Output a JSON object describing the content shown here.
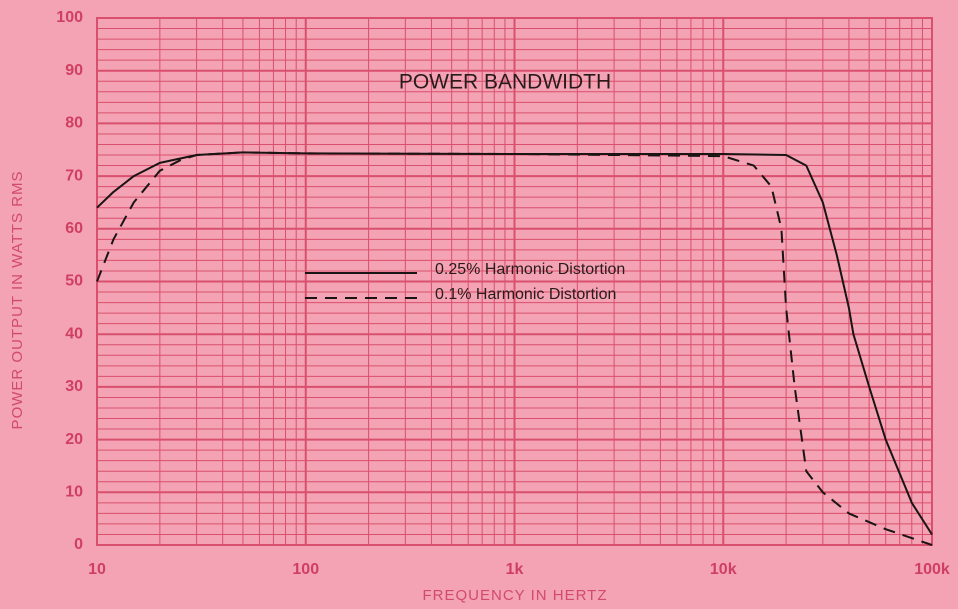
{
  "chart_data": {
    "type": "line",
    "title": "POWER BANDWIDTH",
    "x_label": "FREQUENCY IN HERTZ",
    "y_label": "POWER OUTPUT IN WATTS RMS",
    "x_log": true,
    "grid": true,
    "minor_grid": true,
    "legend": "center",
    "xlim": [
      10,
      100000
    ],
    "ylim": [
      0,
      100
    ],
    "xticks": [
      10,
      100,
      {
        "value": 1000,
        "label": "1k"
      },
      {
        "value": 10000,
        "label": "10k"
      },
      {
        "value": 100000,
        "label": "100k"
      }
    ],
    "yticks": [
      0,
      10,
      20,
      30,
      40,
      50,
      60,
      70,
      80,
      90,
      100
    ],
    "series": [
      {
        "name": "0.25% Harmonic Distortion",
        "color": "#1a1414",
        "dash": "solid",
        "x": [
          10,
          12,
          15,
          20,
          30,
          50,
          100,
          1000,
          10000,
          20000,
          25000,
          30000,
          35000,
          40000,
          42000,
          50000,
          60000,
          80000,
          100000
        ],
        "values": [
          64,
          67,
          70,
          72.5,
          74,
          74.5,
          74.3,
          74.2,
          74.2,
          74,
          72,
          65,
          55,
          45,
          40,
          30,
          20,
          8,
          2
        ]
      },
      {
        "name": "0.1% Harmonic Distortion",
        "color": "#1a1414",
        "dash": "dashed",
        "x": [
          10,
          12,
          15,
          20,
          25,
          30,
          50,
          100,
          1000,
          10000,
          14000,
          17000,
          19000,
          20000,
          22000,
          25000,
          30000,
          40000,
          60000,
          100000
        ],
        "values": [
          50,
          58,
          65,
          71,
          73,
          74,
          74.5,
          74.3,
          74.2,
          73.8,
          72,
          68,
          60,
          45,
          30,
          14,
          10,
          6,
          3,
          0
        ]
      }
    ]
  }
}
